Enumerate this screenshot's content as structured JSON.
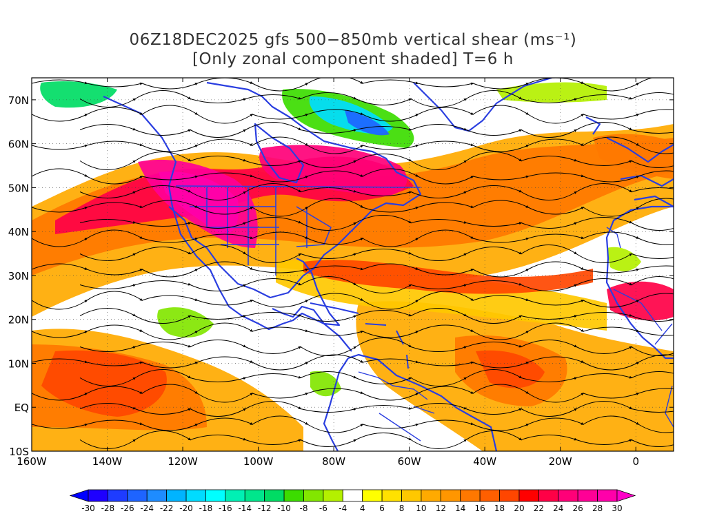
{
  "title": {
    "line1": "06Z18DEC2025 gfs 500−850mb vertical shear (ms⁻¹)",
    "line2": "[Only zonal component shaded] T=6 h"
  },
  "map": {
    "lon_range": [
      -160,
      10
    ],
    "lat_range": [
      -10,
      75
    ],
    "lon_ticks": [
      {
        "lon": -160,
        "label": "160W"
      },
      {
        "lon": -140,
        "label": "140W"
      },
      {
        "lon": -120,
        "label": "120W"
      },
      {
        "lon": -100,
        "label": "100W"
      },
      {
        "lon": -80,
        "label": "80W"
      },
      {
        "lon": -60,
        "label": "60W"
      },
      {
        "lon": -40,
        "label": "40W"
      },
      {
        "lon": -20,
        "label": "20W"
      },
      {
        "lon": 0,
        "label": "0"
      }
    ],
    "lat_ticks": [
      {
        "lat": 70,
        "label": "70N"
      },
      {
        "lat": 60,
        "label": "60N"
      },
      {
        "lat": 50,
        "label": "50N"
      },
      {
        "lat": 40,
        "label": "40N"
      },
      {
        "lat": 30,
        "label": "30N"
      },
      {
        "lat": 20,
        "label": "20N"
      },
      {
        "lat": 10,
        "label": "10N"
      },
      {
        "lat": 0,
        "label": "EQ"
      },
      {
        "lat": -10,
        "label": "10S"
      }
    ]
  },
  "colorbar": {
    "labels": [
      "-30",
      "-28",
      "-26",
      "-24",
      "-22",
      "-20",
      "-18",
      "-16",
      "-14",
      "-12",
      "-10",
      "-8",
      "-6",
      "-4",
      "4",
      "6",
      "8",
      "10",
      "12",
      "14",
      "16",
      "18",
      "20",
      "22",
      "24",
      "26",
      "28",
      "30"
    ],
    "colors": [
      "#1e00ff",
      "#1e3cff",
      "#1e64ff",
      "#1e8cff",
      "#00b4ff",
      "#00dcff",
      "#00ffff",
      "#00f0b4",
      "#00e68c",
      "#00dc64",
      "#3cdc00",
      "#82e600",
      "#b4f000",
      "#ffffff",
      "#ffff00",
      "#ffe100",
      "#ffc800",
      "#ffaa00",
      "#ff9600",
      "#ff7800",
      "#ff5f00",
      "#ff4600",
      "#ff0000",
      "#ff0046",
      "#ff0078",
      "#ff0096",
      "#ff00aa"
    ],
    "under_color": "#0000ff",
    "over_color": "#ff00c8"
  }
}
